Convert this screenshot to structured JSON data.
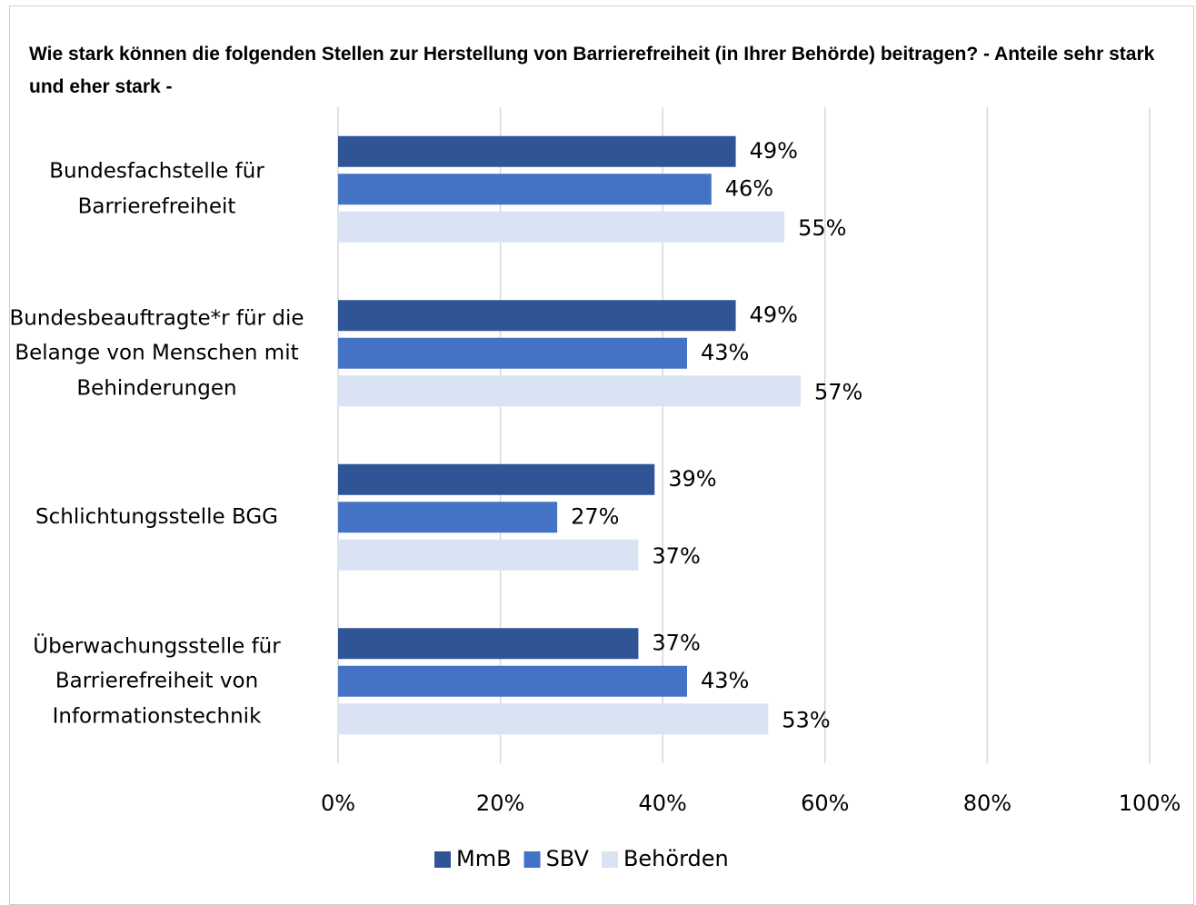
{
  "chart_data": {
    "type": "hbar",
    "title": "Wie stark können die folgenden Stellen zur Herstellung von Barrierefreiheit (in Ihrer Behörde) beitragen? - Anteile sehr stark und eher stark -",
    "categories": [
      "Bundesfachstelle für Barrierefreiheit",
      "Bundesbeauftragte*r für die Belange von Menschen mit Behinderungen",
      "Schlichtungsstelle BGG",
      "Überwachungsstelle für Barrierefreiheit von Informationstechnik"
    ],
    "series": [
      {
        "name": "MmB",
        "color": "#2f5597",
        "values": [
          49,
          49,
          39,
          37
        ],
        "value_labels": [
          "49%",
          "49%",
          "39%",
          "37%"
        ]
      },
      {
        "name": "SBV",
        "color": "#4472c4",
        "values": [
          46,
          43,
          27,
          43
        ],
        "value_labels": [
          "46%",
          "43%",
          "27%",
          "43%"
        ]
      },
      {
        "name": "Behörden",
        "color": "#dae3f3",
        "values": [
          55,
          57,
          37,
          53
        ],
        "value_labels": [
          "55%",
          "57%",
          "37%",
          "53%"
        ]
      }
    ],
    "xlim": [
      0,
      100
    ],
    "xticks": [
      {
        "value": 0,
        "label": "0%"
      },
      {
        "value": 20,
        "label": "20%"
      },
      {
        "value": 40,
        "label": "40%"
      },
      {
        "value": 60,
        "label": "60%"
      },
      {
        "value": 80,
        "label": "80%"
      },
      {
        "value": 100,
        "label": "100%"
      }
    ],
    "grid": true,
    "legend": "bottom"
  }
}
